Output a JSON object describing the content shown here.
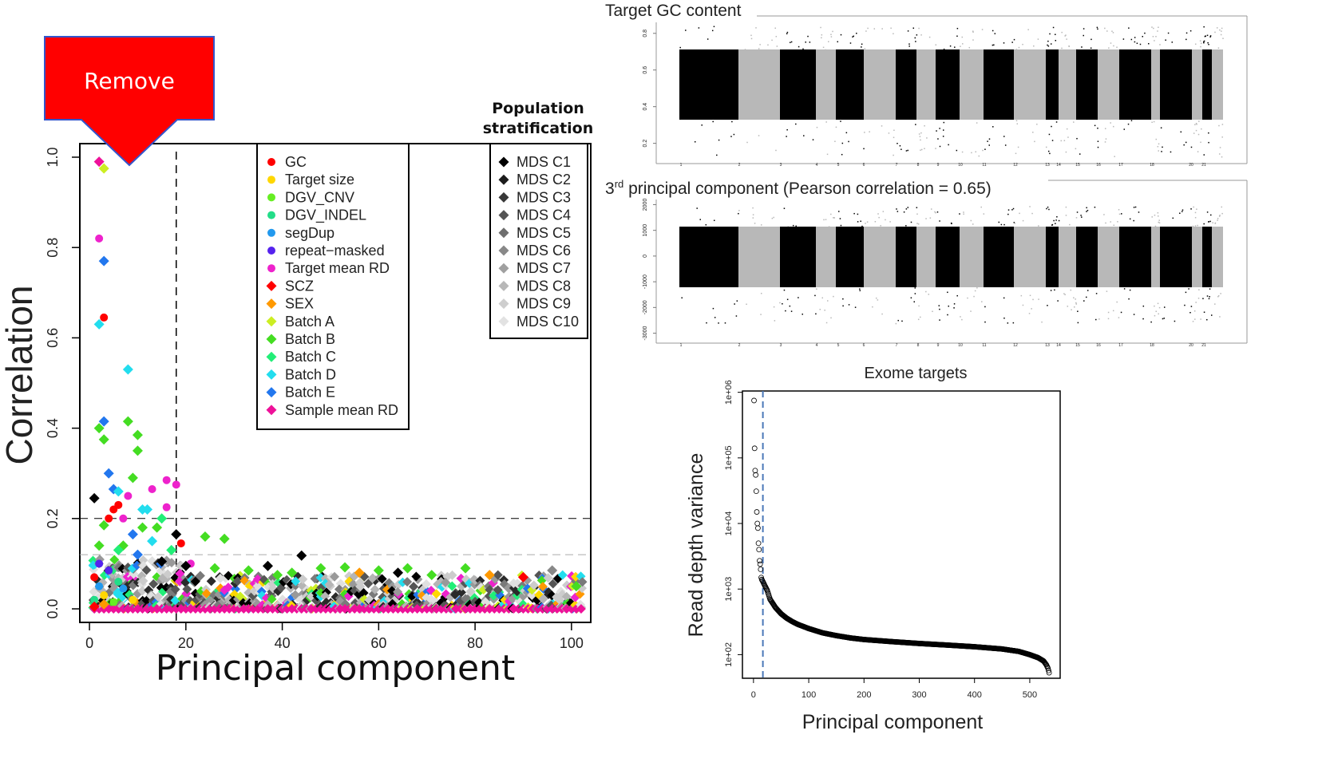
{
  "annotations": {
    "remove_label": "Remove",
    "popstrat_line1": "Population",
    "popstrat_line2": "stratification",
    "top_title": "Target GC content",
    "mid_title_prefix": "3",
    "mid_title_sup": "rd",
    "mid_title_rest": " principal component (Pearson correlation = 0.65)",
    "mid_xlabel": "Exome targets"
  },
  "colors": {
    "remove_arrow": "#ff0000",
    "remove_border": "#3355cc",
    "vline_blue": "#4a78b8"
  },
  "chart_data": [
    {
      "id": "correlation",
      "type": "scatter",
      "xlabel": "Principal component",
      "ylabel": "Correlation",
      "xlim": [
        -2,
        104
      ],
      "ylim": [
        -0.03,
        1.03
      ],
      "xticks": [
        0,
        20,
        40,
        60,
        80,
        100
      ],
      "yticks": [
        0.0,
        0.2,
        0.4,
        0.6,
        0.8,
        1.0
      ],
      "ytick_labels": [
        "0.0",
        "0.2",
        "0.4",
        "0.6",
        "0.8",
        "1.0"
      ],
      "vline_x": 18,
      "hlines": [
        0.2,
        0.12
      ],
      "legend_main": [
        {
          "label": "GC",
          "color": "#ff0000",
          "shape": "circle"
        },
        {
          "label": "Target size",
          "color": "#ffd700",
          "shape": "circle"
        },
        {
          "label": "DGV_CNV",
          "color": "#66ee22",
          "shape": "circle"
        },
        {
          "label": "DGV_INDEL",
          "color": "#22dd88",
          "shape": "circle"
        },
        {
          "label": "segDup",
          "color": "#2299ee",
          "shape": "circle"
        },
        {
          "label": "repeat−masked",
          "color": "#5522ee",
          "shape": "circle"
        },
        {
          "label": "Target mean RD",
          "color": "#ee22cc",
          "shape": "circle"
        },
        {
          "label": "SCZ",
          "color": "#ff0000",
          "shape": "diamond"
        },
        {
          "label": "SEX",
          "color": "#ff9900",
          "shape": "diamond"
        },
        {
          "label": "Batch A",
          "color": "#ccee22",
          "shape": "diamond"
        },
        {
          "label": "Batch B",
          "color": "#44dd22",
          "shape": "diamond"
        },
        {
          "label": "Batch C",
          "color": "#22ee77",
          "shape": "diamond"
        },
        {
          "label": "Batch D",
          "color": "#22ddee",
          "shape": "diamond"
        },
        {
          "label": "Batch E",
          "color": "#2277ee",
          "shape": "diamond"
        },
        {
          "label": "Sample mean RD",
          "color": "#ee1199",
          "shape": "diamond"
        }
      ],
      "legend_mds": [
        {
          "label": "MDS C1",
          "color": "#000000"
        },
        {
          "label": "MDS C2",
          "color": "#1c1c1c"
        },
        {
          "label": "MDS C3",
          "color": "#383838"
        },
        {
          "label": "MDS C4",
          "color": "#545454"
        },
        {
          "label": "MDS C5",
          "color": "#6e6e6e"
        },
        {
          "label": "MDS C6",
          "color": "#888888"
        },
        {
          "label": "MDS C7",
          "color": "#a0a0a0"
        },
        {
          "label": "MDS C8",
          "color": "#b8b8b8"
        },
        {
          "label": "MDS C9",
          "color": "#cecece"
        },
        {
          "label": "MDS C10",
          "color": "#e2e2e2"
        }
      ],
      "points": [
        {
          "x": 2,
          "y": 0.99,
          "c": "#ee1199",
          "s": "d"
        },
        {
          "x": 3,
          "y": 0.975,
          "c": "#ccee22",
          "s": "d"
        },
        {
          "x": 2,
          "y": 0.82,
          "c": "#ee22cc",
          "s": "o"
        },
        {
          "x": 3,
          "y": 0.77,
          "c": "#2277ee",
          "s": "d"
        },
        {
          "x": 3,
          "y": 0.645,
          "c": "#ff0000",
          "s": "o"
        },
        {
          "x": 2,
          "y": 0.63,
          "c": "#22ddee",
          "s": "d"
        },
        {
          "x": 8,
          "y": 0.53,
          "c": "#22ddee",
          "s": "d"
        },
        {
          "x": 3,
          "y": 0.415,
          "c": "#2277ee",
          "s": "d"
        },
        {
          "x": 8,
          "y": 0.415,
          "c": "#44dd22",
          "s": "d"
        },
        {
          "x": 2,
          "y": 0.4,
          "c": "#44dd22",
          "s": "d"
        },
        {
          "x": 10,
          "y": 0.385,
          "c": "#44dd22",
          "s": "d"
        },
        {
          "x": 3,
          "y": 0.375,
          "c": "#44dd22",
          "s": "d"
        },
        {
          "x": 10,
          "y": 0.35,
          "c": "#44dd22",
          "s": "d"
        },
        {
          "x": 4,
          "y": 0.3,
          "c": "#2277ee",
          "s": "d"
        },
        {
          "x": 9,
          "y": 0.29,
          "c": "#44dd22",
          "s": "d"
        },
        {
          "x": 16,
          "y": 0.285,
          "c": "#ee22cc",
          "s": "o"
        },
        {
          "x": 18,
          "y": 0.275,
          "c": "#ee22cc",
          "s": "o"
        },
        {
          "x": 5,
          "y": 0.265,
          "c": "#2277ee",
          "s": "d"
        },
        {
          "x": 13,
          "y": 0.265,
          "c": "#ee22cc",
          "s": "o"
        },
        {
          "x": 8,
          "y": 0.25,
          "c": "#ee22cc",
          "s": "o"
        },
        {
          "x": 1,
          "y": 0.245,
          "c": "#000000",
          "s": "d"
        },
        {
          "x": 6,
          "y": 0.26,
          "c": "#22ddee",
          "s": "d"
        },
        {
          "x": 6,
          "y": 0.23,
          "c": "#ff0000",
          "s": "o"
        },
        {
          "x": 5,
          "y": 0.22,
          "c": "#ff0000",
          "s": "o"
        },
        {
          "x": 11,
          "y": 0.22,
          "c": "#22ddee",
          "s": "d"
        },
        {
          "x": 12,
          "y": 0.22,
          "c": "#22ddee",
          "s": "d"
        },
        {
          "x": 16,
          "y": 0.225,
          "c": "#ee22cc",
          "s": "o"
        },
        {
          "x": 4,
          "y": 0.2,
          "c": "#ff0000",
          "s": "o"
        },
        {
          "x": 7,
          "y": 0.2,
          "c": "#ee22cc",
          "s": "o"
        },
        {
          "x": 15,
          "y": 0.2,
          "c": "#22ee77",
          "s": "d"
        },
        {
          "x": 3,
          "y": 0.185,
          "c": "#44dd22",
          "s": "d"
        },
        {
          "x": 11,
          "y": 0.18,
          "c": "#44dd22",
          "s": "d"
        },
        {
          "x": 14,
          "y": 0.18,
          "c": "#44dd22",
          "s": "d"
        },
        {
          "x": 9,
          "y": 0.165,
          "c": "#2277ee",
          "s": "d"
        },
        {
          "x": 18,
          "y": 0.165,
          "c": "#000000",
          "s": "d"
        },
        {
          "x": 24,
          "y": 0.16,
          "c": "#44dd22",
          "s": "d"
        },
        {
          "x": 28,
          "y": 0.155,
          "c": "#44dd22",
          "s": "d"
        },
        {
          "x": 13,
          "y": 0.15,
          "c": "#22ddee",
          "s": "d"
        },
        {
          "x": 19,
          "y": 0.145,
          "c": "#ff0000",
          "s": "o"
        },
        {
          "x": 7,
          "y": 0.14,
          "c": "#44dd22",
          "s": "d"
        },
        {
          "x": 2,
          "y": 0.14,
          "c": "#44dd22",
          "s": "d"
        },
        {
          "x": 17,
          "y": 0.13,
          "c": "#22ee77",
          "s": "d"
        },
        {
          "x": 6,
          "y": 0.13,
          "c": "#22ee77",
          "s": "d"
        },
        {
          "x": 10,
          "y": 0.12,
          "c": "#2277ee",
          "s": "d"
        },
        {
          "x": 44,
          "y": 0.118,
          "c": "#000000",
          "s": "d"
        },
        {
          "x": 21,
          "y": 0.1,
          "c": "#ee22cc",
          "s": "o"
        },
        {
          "x": 15,
          "y": 0.105,
          "c": "#000000",
          "s": "d"
        },
        {
          "x": 20,
          "y": 0.095,
          "c": "#000000",
          "s": "d"
        },
        {
          "x": 26,
          "y": 0.09,
          "c": "#44dd22",
          "s": "d"
        },
        {
          "x": 33,
          "y": 0.085,
          "c": "#44dd22",
          "s": "d"
        },
        {
          "x": 37,
          "y": 0.095,
          "c": "#000000",
          "s": "d"
        },
        {
          "x": 39,
          "y": 0.075,
          "c": "#44dd22",
          "s": "d"
        },
        {
          "x": 42,
          "y": 0.08,
          "c": "#44dd22",
          "s": "d"
        },
        {
          "x": 48,
          "y": 0.09,
          "c": "#44dd22",
          "s": "d"
        },
        {
          "x": 53,
          "y": 0.092,
          "c": "#44dd22",
          "s": "d"
        },
        {
          "x": 56,
          "y": 0.08,
          "c": "#ff9900",
          "s": "d"
        },
        {
          "x": 60,
          "y": 0.085,
          "c": "#44dd22",
          "s": "d"
        },
        {
          "x": 64,
          "y": 0.08,
          "c": "#000000",
          "s": "d"
        },
        {
          "x": 66,
          "y": 0.09,
          "c": "#44dd22",
          "s": "d"
        },
        {
          "x": 71,
          "y": 0.075,
          "c": "#44dd22",
          "s": "d"
        },
        {
          "x": 78,
          "y": 0.09,
          "c": "#44dd22",
          "s": "d"
        },
        {
          "x": 83,
          "y": 0.075,
          "c": "#ff9900",
          "s": "d"
        },
        {
          "x": 90,
          "y": 0.07,
          "c": "#ff0000",
          "s": "d"
        },
        {
          "x": 96,
          "y": 0.085,
          "c": "#888888",
          "s": "d"
        },
        {
          "x": 101,
          "y": 0.05,
          "c": "#44dd22",
          "s": "d"
        },
        {
          "x": 1,
          "y": 0.07,
          "c": "#ff0000",
          "s": "o"
        },
        {
          "x": 2,
          "y": 0.1,
          "c": "#5522ee",
          "s": "o"
        },
        {
          "x": 1,
          "y": 0.02,
          "c": "#22dd88",
          "s": "o"
        },
        {
          "x": 2,
          "y": 0.05,
          "c": "#2299ee",
          "s": "o"
        },
        {
          "x": 3,
          "y": 0.03,
          "c": "#ffd700",
          "s": "o"
        },
        {
          "x": 4,
          "y": 0.085,
          "c": "#5522ee",
          "s": "o"
        },
        {
          "x": 5,
          "y": 0.015,
          "c": "#66ee22",
          "s": "o"
        },
        {
          "x": 6,
          "y": 0.06,
          "c": "#22dd88",
          "s": "o"
        },
        {
          "x": 7,
          "y": 0.045,
          "c": "#2299ee",
          "s": "o"
        },
        {
          "x": 9,
          "y": 0.02,
          "c": "#ffd700",
          "s": "o"
        },
        {
          "x": 1,
          "y": 0.005,
          "c": "#ff0000",
          "s": "d"
        },
        {
          "x": 3,
          "y": 0.01,
          "c": "#ff9900",
          "s": "d"
        }
      ]
    },
    {
      "id": "gc_content",
      "type": "scatter",
      "title": "Target GC content",
      "yticks": [
        "0.2",
        "0.4",
        "0.6",
        "0.8"
      ],
      "ylim": [
        0.12,
        0.86
      ],
      "xtick_labels": [
        "1",
        "2",
        "3",
        "4",
        "5",
        "6",
        "7",
        "8",
        "9",
        "10",
        "11",
        "12",
        "13",
        "14",
        "15",
        "16",
        "17",
        "18",
        "20",
        "21"
      ]
    },
    {
      "id": "pc3",
      "type": "scatter",
      "title": "3rd principal component (Pearson correlation = 0.65)",
      "xlabel": "Exome targets",
      "yticks": [
        "-3000",
        "-2000",
        "-1000",
        "0",
        "1000",
        "2000"
      ],
      "ylim": [
        -3200,
        2200
      ],
      "xtick_labels": [
        "1",
        "2",
        "3",
        "4",
        "5",
        "6",
        "7",
        "8",
        "9",
        "10",
        "11",
        "12",
        "13",
        "14",
        "15",
        "16",
        "17",
        "18",
        "20",
        "21"
      ]
    },
    {
      "id": "variance",
      "type": "scatter",
      "xlabel": "Principal component",
      "ylabel": "Read depth variance",
      "y_scale": "log",
      "xlim": [
        -20,
        555
      ],
      "xticks": [
        0,
        100,
        200,
        300,
        400,
        500
      ],
      "ylim_log10": [
        1.64,
        6.02
      ],
      "yticks": [
        "1e+02",
        "1e+03",
        "1e+04",
        "1e+05",
        "1e+06"
      ],
      "vline_x": 17,
      "points": [
        {
          "x": 1,
          "y": 750000
        },
        {
          "x": 2,
          "y": 140000
        },
        {
          "x": 3,
          "y": 64000
        },
        {
          "x": 4,
          "y": 55000
        },
        {
          "x": 5,
          "y": 31000
        },
        {
          "x": 6,
          "y": 15000
        },
        {
          "x": 7,
          "y": 10000
        },
        {
          "x": 8,
          "y": 8500
        },
        {
          "x": 9,
          "y": 5000
        },
        {
          "x": 10,
          "y": 4000
        },
        {
          "x": 11,
          "y": 2700
        },
        {
          "x": 12,
          "y": 2400
        },
        {
          "x": 13,
          "y": 2000
        },
        {
          "x": 14,
          "y": 1500
        },
        {
          "x": 15,
          "y": 1400
        },
        {
          "x": 16,
          "y": 1350
        },
        {
          "x": 17,
          "y": 1300
        },
        {
          "x": 18,
          "y": 1250
        },
        {
          "x": 20,
          "y": 1150
        },
        {
          "x": 25,
          "y": 950
        },
        {
          "x": 30,
          "y": 700
        },
        {
          "x": 40,
          "y": 520
        },
        {
          "x": 50,
          "y": 420
        },
        {
          "x": 60,
          "y": 360
        },
        {
          "x": 70,
          "y": 320
        },
        {
          "x": 80,
          "y": 290
        },
        {
          "x": 100,
          "y": 250
        },
        {
          "x": 125,
          "y": 215
        },
        {
          "x": 150,
          "y": 195
        },
        {
          "x": 175,
          "y": 180
        },
        {
          "x": 200,
          "y": 170
        },
        {
          "x": 250,
          "y": 158
        },
        {
          "x": 300,
          "y": 148
        },
        {
          "x": 350,
          "y": 140
        },
        {
          "x": 400,
          "y": 132
        },
        {
          "x": 450,
          "y": 122
        },
        {
          "x": 480,
          "y": 112
        },
        {
          "x": 500,
          "y": 100
        },
        {
          "x": 515,
          "y": 90
        },
        {
          "x": 525,
          "y": 80
        },
        {
          "x": 530,
          "y": 70
        },
        {
          "x": 533,
          "y": 62
        },
        {
          "x": 535,
          "y": 53
        }
      ]
    }
  ]
}
